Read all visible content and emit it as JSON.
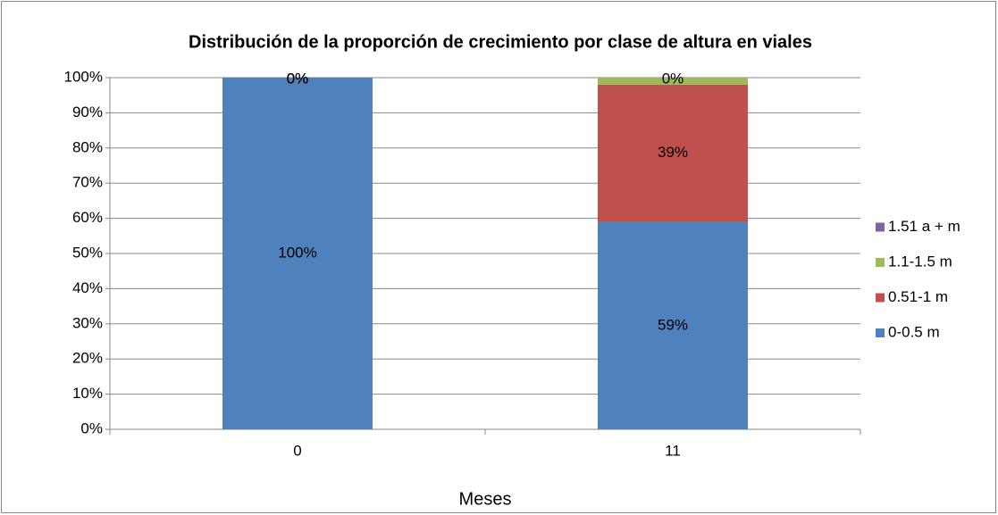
{
  "chart_data": {
    "type": "stacked_bar",
    "title": "Distribución de la proporción de crecimiento por clase de altura en viales",
    "x_label": "Meses",
    "categories": [
      "0",
      "11"
    ],
    "series": [
      {
        "name": "0-0.5 m",
        "color": "#4f81bd",
        "values": [
          100,
          59
        ],
        "value_labels": [
          "100%",
          "59%"
        ]
      },
      {
        "name": "0.51-1 m",
        "color": "#c0504d",
        "values": [
          0,
          39
        ],
        "value_labels": [
          "0%",
          "39%"
        ]
      },
      {
        "name": "1.1-1.5 m",
        "color": "#9bbb59",
        "values": [
          0,
          2
        ],
        "value_labels": [
          "0%",
          null
        ]
      },
      {
        "name": "1.51 a + m",
        "color": "#8064a2",
        "values": [
          0,
          0
        ],
        "value_labels": [
          "0%",
          "0%"
        ]
      }
    ],
    "ylim": [
      0,
      100
    ],
    "yticks": [
      {
        "value": 0,
        "label": "0%"
      },
      {
        "value": 10,
        "label": "10%"
      },
      {
        "value": 20,
        "label": "20%"
      },
      {
        "value": 30,
        "label": "30%"
      },
      {
        "value": 40,
        "label": "40%"
      },
      {
        "value": 50,
        "label": "50%"
      },
      {
        "value": 60,
        "label": "60%"
      },
      {
        "value": 70,
        "label": "70%"
      },
      {
        "value": 80,
        "label": "80%"
      },
      {
        "value": 90,
        "label": "90%"
      },
      {
        "value": 100,
        "label": "100%"
      }
    ],
    "grid": true,
    "legend": "right"
  }
}
